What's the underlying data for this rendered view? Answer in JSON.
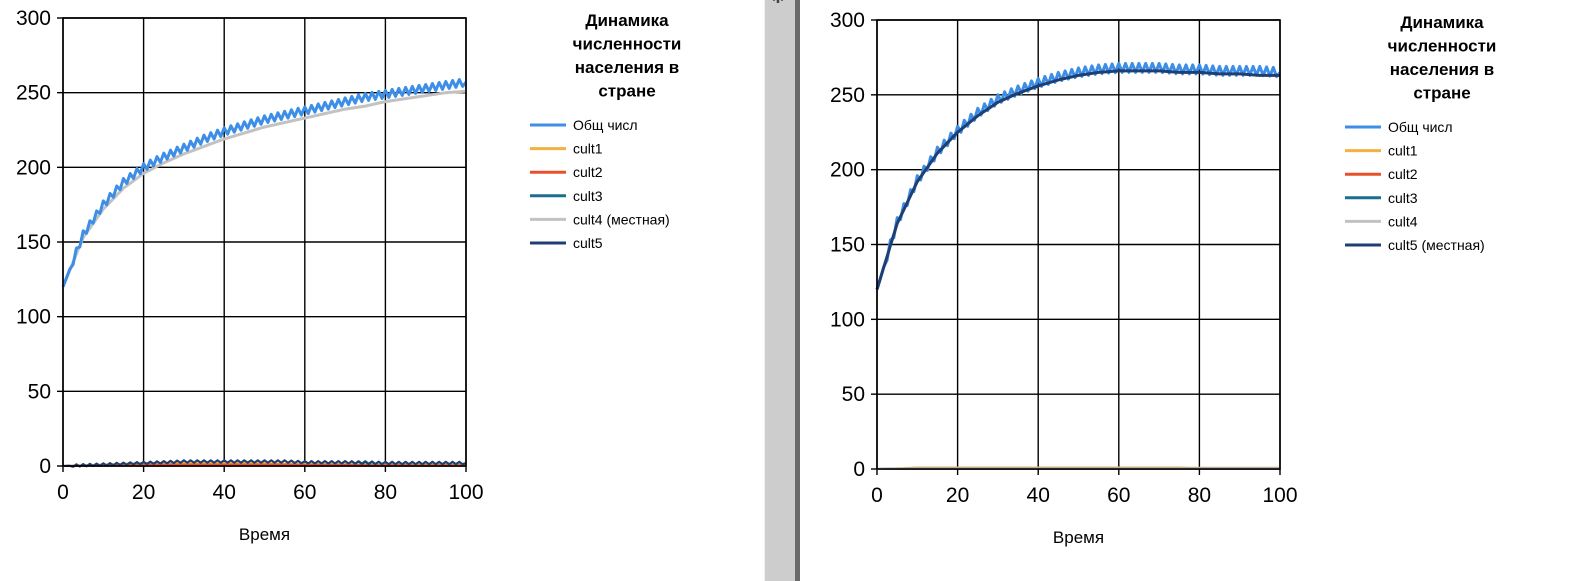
{
  "chart_data": [
    {
      "type": "line",
      "title": "Динамика численности населения в стране",
      "xlabel": "Время",
      "ylabel": "",
      "xlim": [
        0,
        100
      ],
      "ylim": [
        0,
        300
      ],
      "xticks": [
        "0",
        "20",
        "40",
        "60",
        "80",
        "100"
      ],
      "yticks": [
        "0",
        "50",
        "100",
        "150",
        "200",
        "250",
        "300"
      ],
      "grid": true,
      "legend_position": "right",
      "x": [
        0,
        5,
        10,
        15,
        20,
        25,
        30,
        35,
        40,
        45,
        50,
        55,
        60,
        65,
        70,
        75,
        80,
        85,
        90,
        95,
        100
      ],
      "series": [
        {
          "name": "Общ числ",
          "color": "#3d8ee6",
          "width": 3,
          "oscillation": 2.5,
          "values": [
            120,
            155,
            175,
            190,
            200,
            207,
            213,
            219,
            224,
            228,
            232,
            235,
            238,
            241,
            244,
            247,
            249,
            251,
            253,
            255,
            257
          ]
        },
        {
          "name": "cult1",
          "color": "#f5b041",
          "width": 2,
          "oscillation": 0,
          "values": [
            0,
            0.5,
            1,
            1.5,
            2,
            2,
            2,
            2,
            2,
            2,
            2,
            1.5,
            1.5,
            1.5,
            1.5,
            1,
            1,
            1,
            1,
            1,
            1
          ]
        },
        {
          "name": "cult2",
          "color": "#e8502a",
          "width": 2,
          "oscillation": 0,
          "values": [
            0,
            0.3,
            0.5,
            0.8,
            1,
            1,
            1,
            1,
            1,
            1,
            1,
            1,
            0.8,
            0.8,
            0.8,
            0.6,
            0.6,
            0.6,
            0.5,
            0.5,
            0.5
          ]
        },
        {
          "name": "cult3",
          "color": "#1a6e8e",
          "width": 2,
          "oscillation": 0.8,
          "values": [
            0,
            0.5,
            1,
            1.5,
            2,
            2.5,
            3,
            3,
            3,
            3,
            3,
            3,
            2.5,
            2.5,
            2.5,
            2.5,
            2,
            2,
            2,
            2,
            2
          ]
        },
        {
          "name": "cult4 (местная)",
          "color": "#c2c2c2",
          "width": 3,
          "oscillation": 0,
          "values": [
            120,
            153,
            172,
            186,
            196,
            203,
            209,
            214,
            219,
            223,
            227,
            230,
            233,
            236,
            239,
            241,
            244,
            246,
            248,
            250,
            251
          ]
        },
        {
          "name": "cult5",
          "color": "#1f3f73",
          "width": 2,
          "oscillation": 0.8,
          "values": [
            0,
            0.5,
            1,
            1.5,
            2,
            2.5,
            3,
            3,
            3,
            3,
            3,
            3,
            2.5,
            2.5,
            2.5,
            2,
            2,
            2,
            2,
            2,
            2
          ]
        }
      ]
    },
    {
      "type": "line",
      "title": "Динамика численности населения в стране",
      "xlabel": "Время",
      "ylabel": "",
      "xlim": [
        0,
        100
      ],
      "ylim": [
        0,
        300
      ],
      "xticks": [
        "0",
        "20",
        "40",
        "60",
        "80",
        "100"
      ],
      "yticks": [
        "0",
        "50",
        "100",
        "150",
        "200",
        "250",
        "300"
      ],
      "grid": true,
      "legend_position": "right",
      "x": [
        0,
        5,
        10,
        15,
        20,
        25,
        30,
        35,
        40,
        45,
        50,
        55,
        60,
        65,
        70,
        75,
        80,
        85,
        90,
        95,
        100
      ],
      "series": [
        {
          "name": "Общ числ",
          "color": "#3d8ee6",
          "width": 3,
          "oscillation": 3,
          "values": [
            120,
            165,
            193,
            212,
            226,
            238,
            247,
            253,
            258,
            262,
            265,
            267,
            268,
            268,
            268,
            267,
            267,
            266,
            266,
            266,
            265
          ]
        },
        {
          "name": "cult1",
          "color": "#f5b041",
          "width": 2,
          "oscillation": 0,
          "values": [
            0,
            0.5,
            1,
            1,
            1,
            1,
            1,
            1,
            1,
            1,
            1,
            1,
            1,
            1,
            1,
            1,
            0.8,
            0.8,
            0.8,
            0.8,
            0.8
          ]
        },
        {
          "name": "cult2",
          "color": "#e8502a",
          "width": 2,
          "oscillation": 0,
          "values": [
            0,
            0.3,
            0.5,
            0.5,
            0.5,
            0.5,
            0.5,
            0.5,
            0.5,
            0.5,
            0.5,
            0.5,
            0.5,
            0.5,
            0.5,
            0.5,
            0.5,
            0.5,
            0.5,
            0.5,
            0.5
          ]
        },
        {
          "name": "cult3",
          "color": "#1a6e8e",
          "width": 2,
          "oscillation": 0,
          "values": [
            0,
            0.3,
            0.5,
            0.5,
            0.5,
            0.5,
            0.5,
            0.5,
            0.5,
            0.5,
            0.5,
            0.5,
            0.5,
            0.5,
            0.5,
            0.5,
            0.5,
            0.5,
            0.5,
            0.5,
            0.5
          ]
        },
        {
          "name": "cult4",
          "color": "#c2c2c2",
          "width": 2,
          "oscillation": 0,
          "values": [
            0,
            0.3,
            0.5,
            0.5,
            0.5,
            0.5,
            0.5,
            0.5,
            0.5,
            0.5,
            0.5,
            0.5,
            0.5,
            0.5,
            0.5,
            0.5,
            0.5,
            0.5,
            0.5,
            0.5,
            0.5
          ]
        },
        {
          "name": "cult5 (местная)",
          "color": "#1f3f73",
          "width": 3,
          "oscillation": 0,
          "values": [
            120,
            164,
            192,
            211,
            225,
            236,
            245,
            251,
            256,
            260,
            263,
            265,
            266,
            266,
            266,
            265,
            265,
            264,
            264,
            263,
            263
          ]
        }
      ]
    }
  ],
  "splitter": {
    "pin_icon": "pin-icon",
    "pin_glyph": "✱"
  }
}
